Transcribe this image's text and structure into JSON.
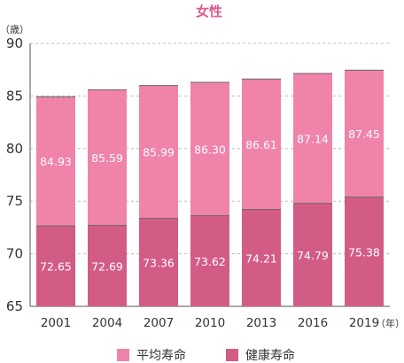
{
  "chart_data": {
    "type": "bar",
    "title": "女性",
    "y_unit": "（歳）",
    "x_unit": "（年）",
    "categories": [
      "2001",
      "2004",
      "2007",
      "2010",
      "2013",
      "2016",
      "2019"
    ],
    "ylim": [
      65,
      90
    ],
    "yticks": [
      65,
      70,
      75,
      80,
      85,
      90
    ],
    "grid": true,
    "legend_position": "bottom",
    "series": [
      {
        "name": "平均寿命",
        "values": [
          84.93,
          85.59,
          85.99,
          86.3,
          86.61,
          87.14,
          87.45
        ],
        "labels": [
          "84.93",
          "85.59",
          "85.99",
          "86.30",
          "86.61",
          "87.14",
          "87.45"
        ],
        "color": "#f083a9"
      },
      {
        "name": "健康寿命",
        "values": [
          72.65,
          72.69,
          73.36,
          73.62,
          74.21,
          74.79,
          75.38
        ],
        "labels": [
          "72.65",
          "72.69",
          "73.36",
          "73.62",
          "74.21",
          "74.79",
          "75.38"
        ],
        "color": "#d35c86"
      }
    ]
  }
}
